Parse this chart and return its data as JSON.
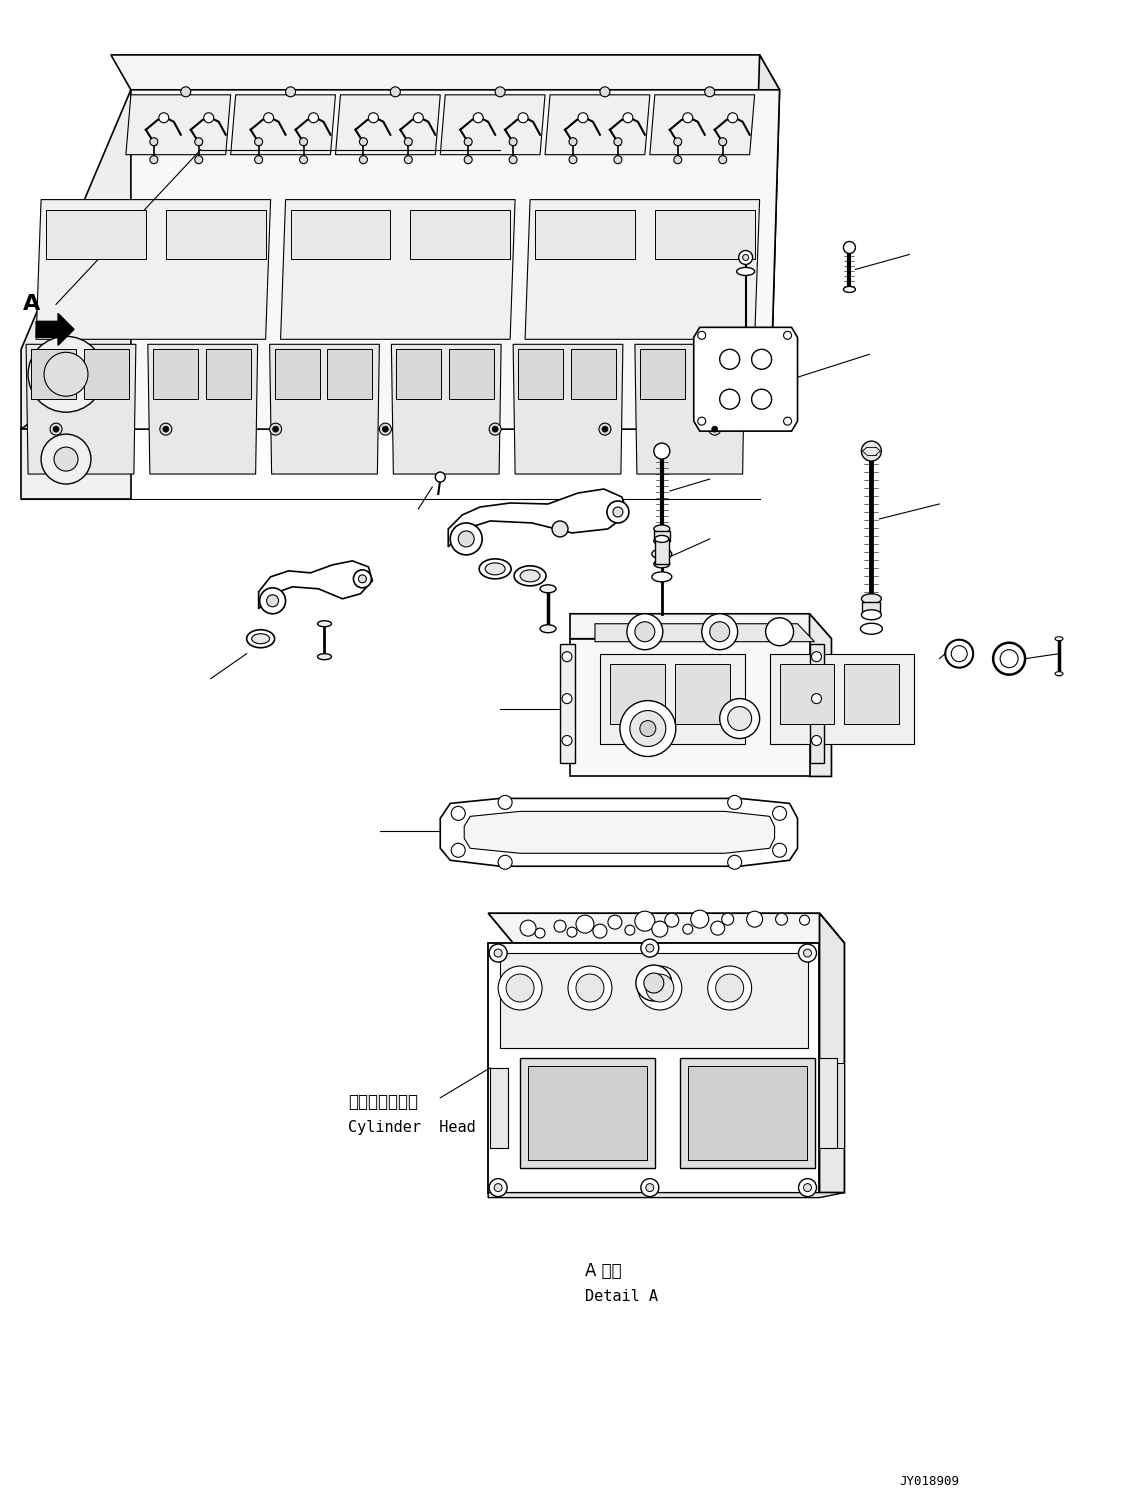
{
  "bg_color": "#ffffff",
  "line_color": "#000000",
  "fig_width": 11.39,
  "fig_height": 14.91,
  "dpi": 100,
  "label_A": "A",
  "label_detail_jp": "シリンダヘッド",
  "label_detail_en": "Cylinder  Head",
  "label_detail_A_jp": "A 詳細",
  "label_detail_A_en": "Detail A",
  "label_code": "JY018909"
}
